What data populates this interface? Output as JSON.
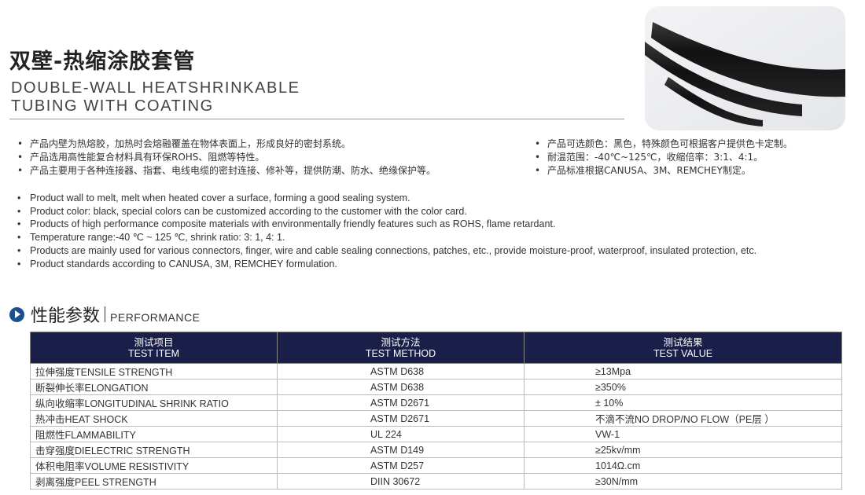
{
  "title": {
    "cn": "双壁-热缩涂胶套管",
    "en_line1": "DOUBLE-WALL HEATSHRINKABLE",
    "en_line2": "TUBING WITH COATING"
  },
  "bullets_cn_left": [
    "产品内壁为热熔胶，加热时会熔融覆盖在物体表面上，形成良好的密封系统。",
    "产品选用高性能复合材料具有环保ROHS、阻燃等特性。",
    "产品主要用于各种连接器、指套、电线电缆的密封连接、修补等，提供防潮、防水、绝缘保护等。"
  ],
  "bullets_cn_right": [
    "产品可选颜色：黑色，特殊颜色可根据客户提供色卡定制。",
    "耐温范围：-40℃~125℃，收缩倍率：3:1、4:1。",
    "产品标准根据CANUSA、3M、REMCHEY制定。"
  ],
  "bullets_en": [
    "Product wall to melt, melt when heated cover a surface, forming a good sealing system.",
    "Product color: black, special colors can be customized according to the customer with the color card.",
    "Products of high performance composite materials with environmentally friendly features such as ROHS, flame retardant.",
    "Temperature range:-40 ℃ ~ 125 ℃, shrink ratio: 3: 1, 4: 1.",
    "Products are mainly used for various connectors, finger, wire and cable sealing connections, patches, etc., provide moisture-proof, waterproof, insulated protection, etc.",
    "Product standards according to CANUSA, 3M, REMCHEY formulation."
  ],
  "bullet_char": "•",
  "section": {
    "cn": "性能参数",
    "en": "PERFORMANCE",
    "icon": "arrow-circle-icon"
  },
  "table": {
    "headers": [
      {
        "cn": "测试项目",
        "en": "TEST ITEM"
      },
      {
        "cn": "测试方法",
        "en": "TEST METHOD"
      },
      {
        "cn": "测试结果",
        "en": "TEST VALUE"
      }
    ],
    "rows": [
      [
        "拉伸强度TENSILE STRENGTH",
        "ASTM D638",
        "≥13Mpa"
      ],
      [
        "断裂伸长率ELONGATION",
        "ASTM D638",
        "≥350%"
      ],
      [
        "纵向收缩率LONGITUDINAL SHRINK RATIO",
        "ASTM D2671",
        "± 10%"
      ],
      [
        "热冲击HEAT SHOCK",
        "ASTM D2671",
        "不滴不流NO DROP/NO FLOW（PE层 ）"
      ],
      [
        "阻燃性FLAMMABILITY",
        "UL 224",
        "VW-1"
      ],
      [
        "击穿强度DIELECTRIC STRENGTH",
        "ASTM D149",
        "≥25kv/mm"
      ],
      [
        "体积电阻率VOLUME RESISTIVITY",
        "ASTM D257",
        "1014Ω.cm"
      ],
      [
        "剥离强度PEEL STRENGTH",
        "DIIN 30672",
        "≥30N/mm"
      ]
    ]
  },
  "colors": {
    "header_bg": "#1a1f4a",
    "accent": "#1d4f8f",
    "tube": "#1c1c1c"
  }
}
